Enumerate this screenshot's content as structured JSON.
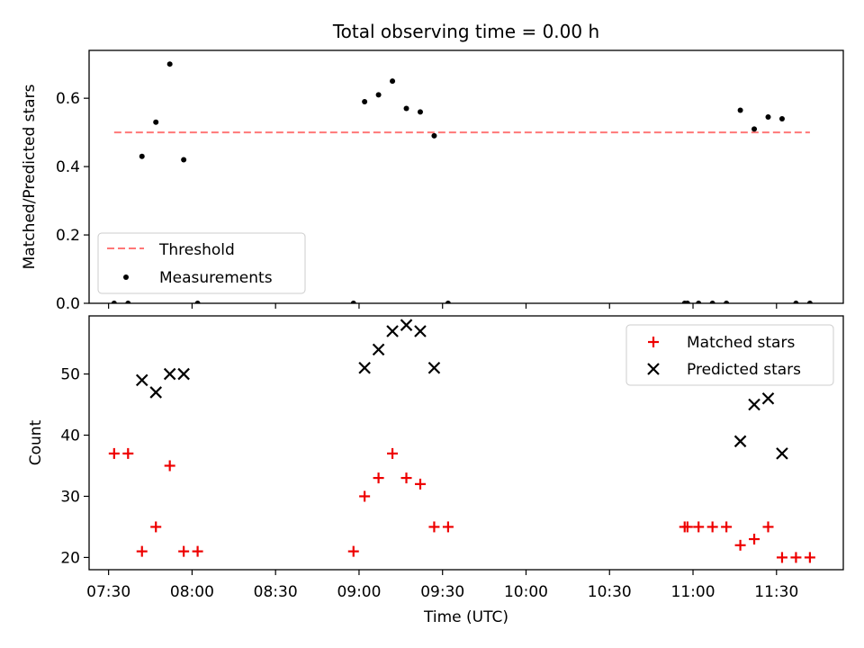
{
  "title": "Total observing time = 0.00 h",
  "colors": {
    "threshold": "#ff7777",
    "measurements": "#000000",
    "matched": "#ee0000",
    "predicted": "#000000"
  },
  "x_ticks": [
    "07:30",
    "08:00",
    "08:30",
    "09:00",
    "09:30",
    "10:00",
    "10:30",
    "11:00",
    "11:30"
  ],
  "chart_data": [
    {
      "type": "scatter",
      "title": "Total observing time = 0.00 h",
      "xlabel": "",
      "ylabel": "Matched/Predicted stars",
      "xlim": [
        "07:23",
        "11:54"
      ],
      "ylim": [
        0,
        0.74
      ],
      "yticks": [
        "0.0",
        "0.2",
        "0.4",
        "0.6"
      ],
      "legend_position": "lower-left",
      "threshold": {
        "name": "Threshold",
        "value": 0.5,
        "x_range": [
          "07:32",
          "11:42"
        ],
        "style": "dashed"
      },
      "series": [
        {
          "name": "Measurements",
          "marker": "dot",
          "points": [
            [
              "07:32",
              0.0
            ],
            [
              "07:37",
              0.0
            ],
            [
              "07:42",
              0.43
            ],
            [
              "07:47",
              0.53
            ],
            [
              "07:52",
              0.7
            ],
            [
              "07:57",
              0.42
            ],
            [
              "08:02",
              0.0
            ],
            [
              "08:58",
              0.0
            ],
            [
              "09:02",
              0.59
            ],
            [
              "09:07",
              0.61
            ],
            [
              "09:12",
              0.65
            ],
            [
              "09:17",
              0.57
            ],
            [
              "09:22",
              0.56
            ],
            [
              "09:27",
              0.49
            ],
            [
              "09:32",
              0.0
            ],
            [
              "10:57",
              0.0
            ],
            [
              "10:58",
              0.0
            ],
            [
              "11:02",
              0.0
            ],
            [
              "11:07",
              0.0
            ],
            [
              "11:12",
              0.0
            ],
            [
              "11:17",
              0.565
            ],
            [
              "11:22",
              0.51
            ],
            [
              "11:27",
              0.545
            ],
            [
              "11:32",
              0.54
            ],
            [
              "11:37",
              0.0
            ],
            [
              "11:42",
              0.0
            ]
          ]
        }
      ]
    },
    {
      "type": "scatter",
      "title": "",
      "xlabel": "Time (UTC)",
      "ylabel": "Count",
      "xlim": [
        "07:23",
        "11:54"
      ],
      "ylim": [
        18,
        59.5
      ],
      "yticks": [
        "20",
        "30",
        "40",
        "50"
      ],
      "legend_position": "top-right",
      "series": [
        {
          "name": "Matched stars",
          "marker": "plus",
          "points": [
            [
              "07:32",
              37
            ],
            [
              "07:37",
              37
            ],
            [
              "07:42",
              21
            ],
            [
              "07:47",
              25
            ],
            [
              "07:52",
              35
            ],
            [
              "07:57",
              21
            ],
            [
              "08:02",
              21
            ],
            [
              "08:58",
              21
            ],
            [
              "09:02",
              30
            ],
            [
              "09:07",
              33
            ],
            [
              "09:12",
              37
            ],
            [
              "09:17",
              33
            ],
            [
              "09:22",
              32
            ],
            [
              "09:27",
              25
            ],
            [
              "09:32",
              25
            ],
            [
              "10:57",
              25
            ],
            [
              "10:58",
              25
            ],
            [
              "11:02",
              25
            ],
            [
              "11:07",
              25
            ],
            [
              "11:12",
              25
            ],
            [
              "11:17",
              22
            ],
            [
              "11:22",
              23
            ],
            [
              "11:27",
              25
            ],
            [
              "11:32",
              20
            ],
            [
              "11:37",
              20
            ],
            [
              "11:42",
              20
            ]
          ]
        },
        {
          "name": "Predicted stars",
          "marker": "x",
          "points": [
            [
              "07:42",
              49
            ],
            [
              "07:47",
              47
            ],
            [
              "07:52",
              50
            ],
            [
              "07:57",
              50
            ],
            [
              "09:02",
              51
            ],
            [
              "09:07",
              54
            ],
            [
              "09:12",
              57
            ],
            [
              "09:17",
              58
            ],
            [
              "09:22",
              57
            ],
            [
              "09:27",
              51
            ],
            [
              "11:17",
              39
            ],
            [
              "11:22",
              45
            ],
            [
              "11:27",
              46
            ],
            [
              "11:32",
              37
            ]
          ]
        }
      ]
    }
  ]
}
